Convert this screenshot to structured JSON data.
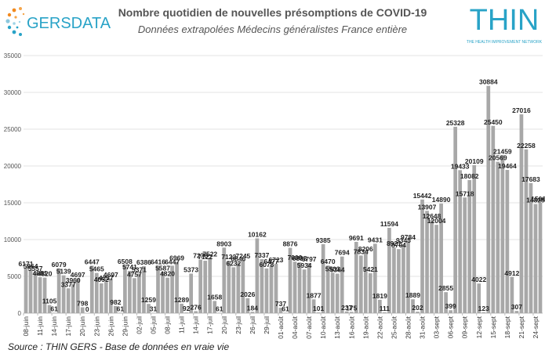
{
  "title": "Nombre quotidien de nouvelles présomptions de COVID-19",
  "subtitle": "Données extrapolées Médecins généralistes France entière",
  "logo_left": "GERSDATA",
  "logo_right": {
    "main": "THIN",
    "tagline": "THE HEALTH IMPROVEMENT NETWORK"
  },
  "source": "Source : THIN GERS - Base de données en vraie vie",
  "colors": {
    "bar": "#a8a8a8",
    "accent": "#29a3c7",
    "orange": "#f28a1e"
  },
  "chart_data": {
    "type": "bar",
    "title": "Nombre quotidien de nouvelles présomptions de COVID-19",
    "subtitle": "Données extrapolées Médecins généralistes France entière",
    "ylim": [
      0,
      35000
    ],
    "yticks": [
      0,
      5000,
      10000,
      15000,
      20000,
      25000,
      30000,
      35000
    ],
    "grid": true,
    "legend": "none",
    "x_labels": [
      "08-juin",
      "11-juin",
      "14-juin",
      "17-juin",
      "20-juin",
      "23-juin",
      "26-juin",
      "29-juin",
      "02-juil",
      "05-juil",
      "08-juil",
      "11-juil",
      "14-juil",
      "17-juil",
      "20-juil",
      "23-juil",
      "26-juil",
      "29-juil",
      "01-août",
      "04-août",
      "07-août",
      "10-août",
      "13-août",
      "16-août",
      "19-août",
      "22-août",
      "25-août",
      "28-août",
      "31-août",
      "03-sept",
      "06-sept",
      "09-sept",
      "12-sept",
      "15-sept",
      "18-sept",
      "21-sept",
      "24-sept"
    ],
    "values": [
      6171,
      5864,
      5557,
      4881,
      4820,
      1105,
      61,
      6079,
      5139,
      3377,
      3960,
      4697,
      798,
      0,
      6447,
      5465,
      4052,
      4237,
      4697,
      982,
      61,
      6508,
      5741,
      4757,
      5371,
      6386,
      1259,
      31,
      6416,
      5587,
      4820,
      6447,
      6969,
      1289,
      92,
      5373,
      276,
      7276,
      7122,
      7522,
      1658,
      61,
      8903,
      7122,
      6232,
      6846,
      7245,
      2026,
      184,
      10162,
      7337,
      6078,
      6477,
      6723,
      737,
      61,
      8876,
      7000,
      6898,
      5934,
      6797,
      1877,
      101,
      9385,
      6470,
      5503,
      5364,
      7694,
      237,
      175,
      9691,
      7834,
      8206,
      5421,
      9431,
      1819,
      111,
      11594,
      8921,
      8704,
      9345,
      9784,
      1889,
      202,
      15442,
      13907,
      12648,
      12004,
      14890,
      2855,
      399,
      25328,
      19433,
      15718,
      18082,
      20109,
      4022,
      123,
      30884,
      25450,
      20569,
      21459,
      19464,
      4912,
      307,
      27016,
      22258,
      17683,
      14828,
      15000
    ]
  }
}
